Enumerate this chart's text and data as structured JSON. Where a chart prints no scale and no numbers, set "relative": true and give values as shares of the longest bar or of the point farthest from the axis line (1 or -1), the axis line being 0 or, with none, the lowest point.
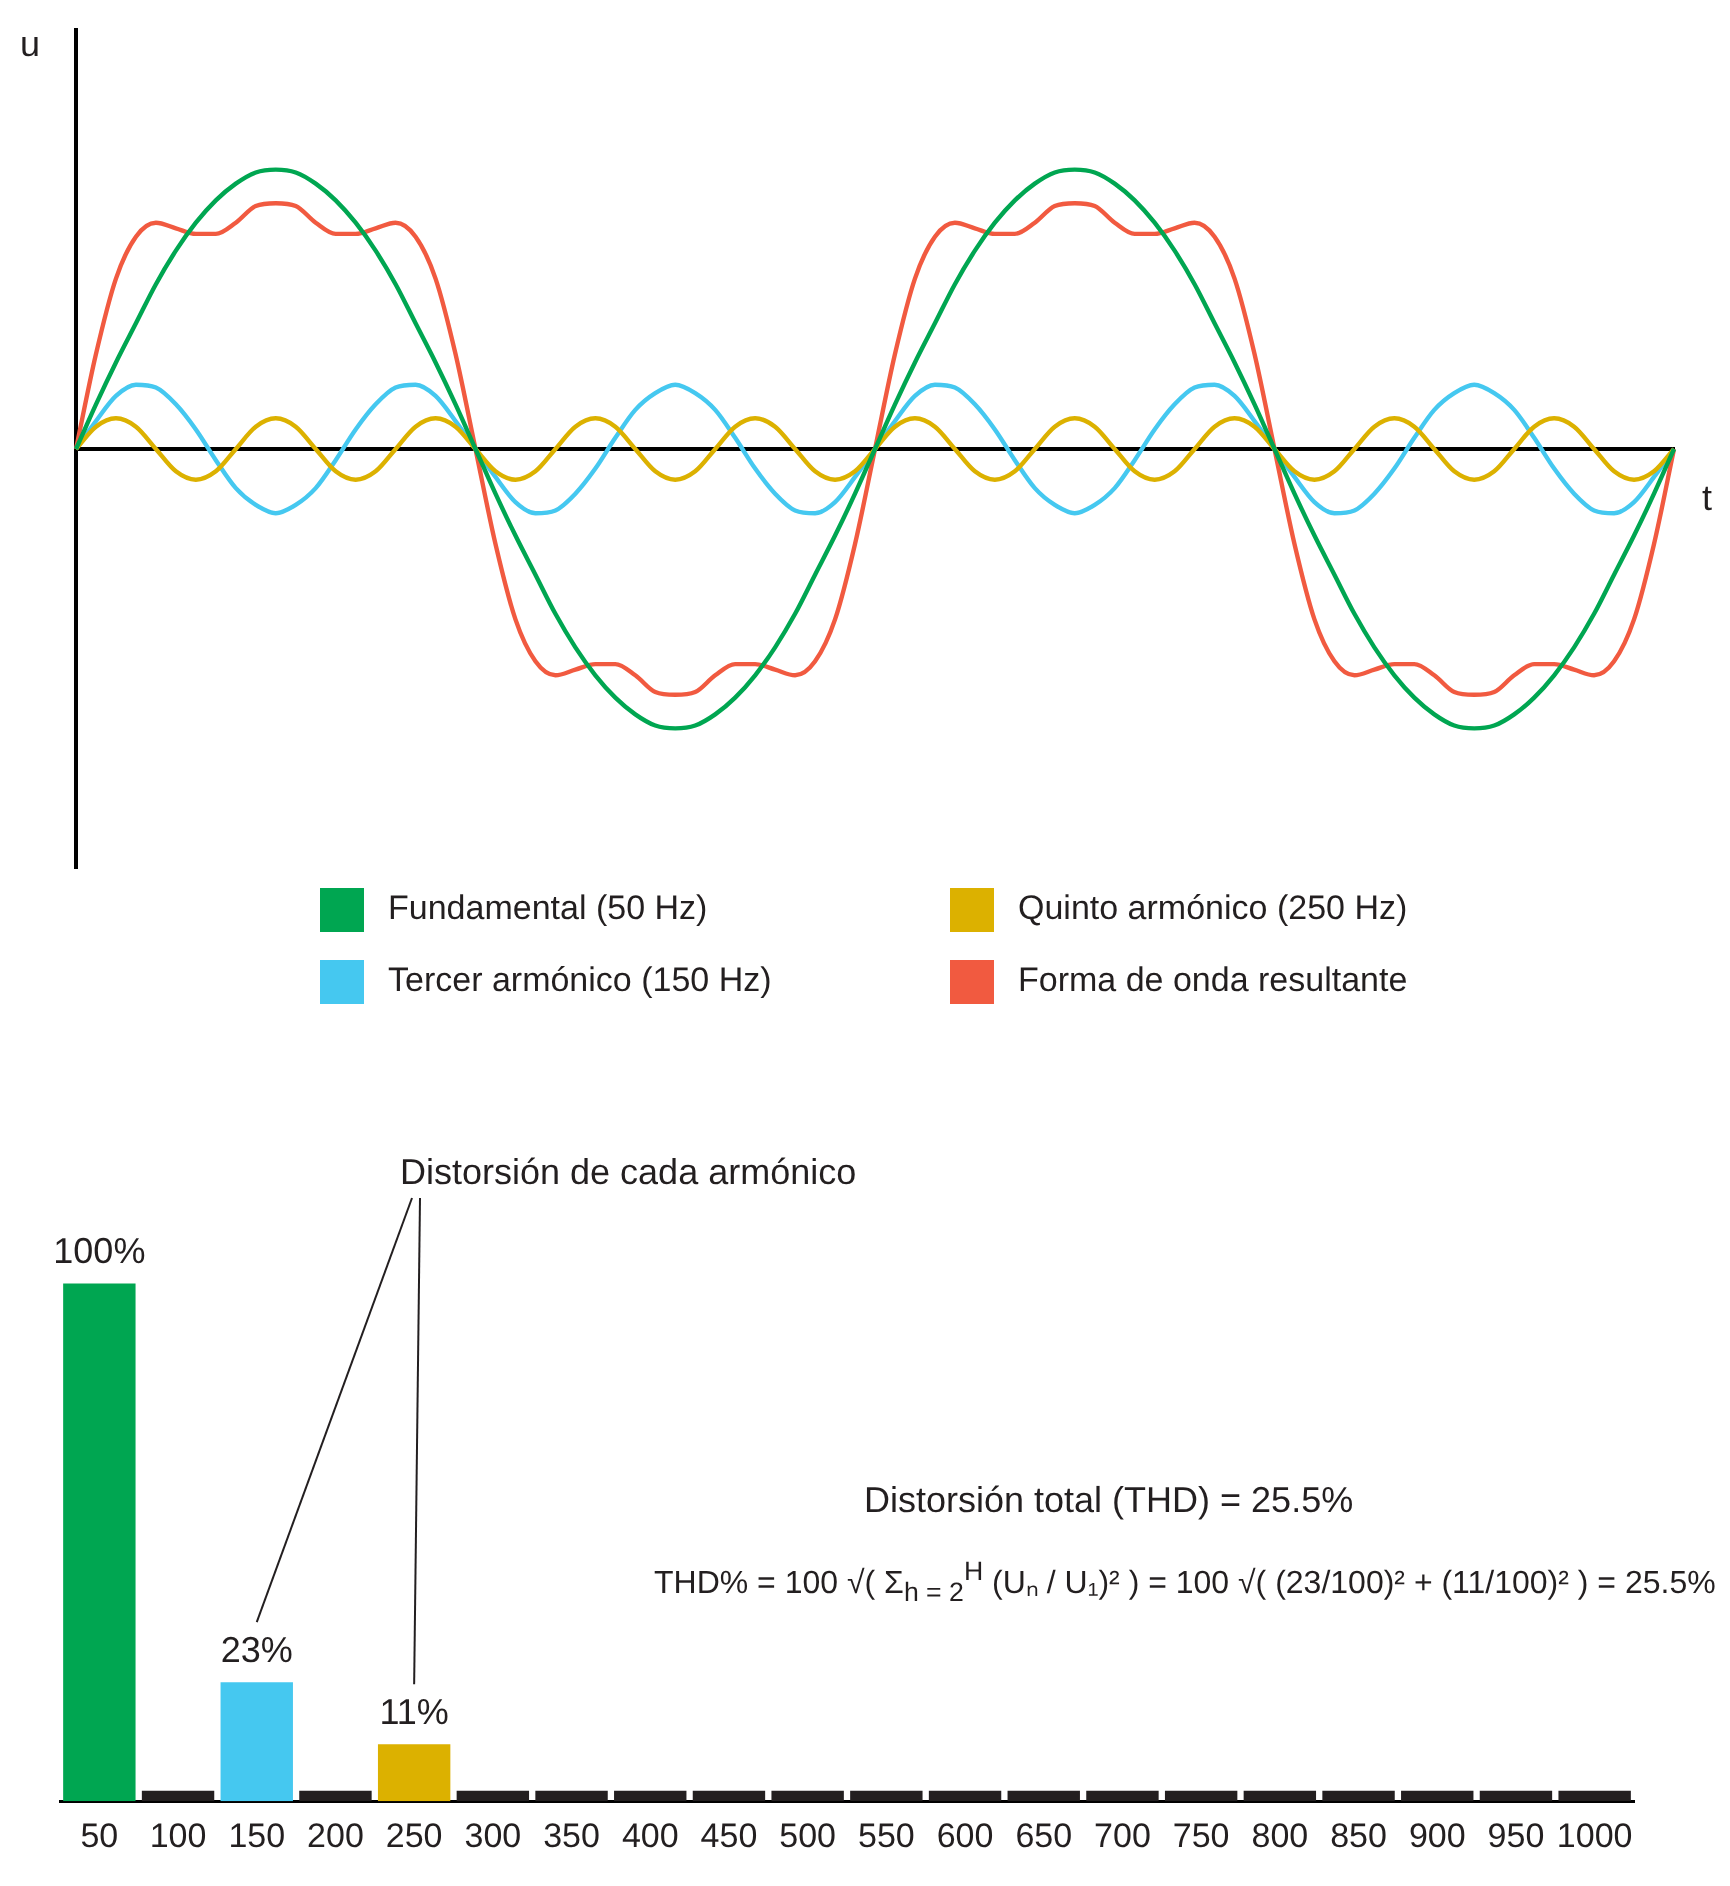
{
  "chart_data": [
    {
      "type": "line",
      "relative": true,
      "ylabel": "u",
      "xlabel": "t",
      "tick_labels": false,
      "legend": "bottom",
      "categories": [
        null,
        null,
        null,
        null,
        null,
        null,
        null,
        null,
        null,
        null,
        null,
        null,
        null,
        null,
        null,
        null,
        null,
        null,
        null,
        null,
        null,
        null,
        null,
        null,
        null,
        null,
        null,
        null,
        null,
        null,
        null,
        null,
        null,
        null,
        null,
        null,
        null,
        null,
        null,
        null,
        null,
        null,
        null,
        null,
        null,
        null,
        null,
        null,
        null,
        null,
        null,
        null,
        null,
        null,
        null,
        null,
        null,
        null,
        null,
        null,
        null,
        null,
        null,
        null,
        null,
        null,
        null,
        null,
        null,
        null,
        null,
        null,
        null,
        null,
        null,
        null,
        null,
        null,
        null,
        null,
        null
      ],
      "series": [
        {
          "name": "Fundamental (50 Hz)",
          "color": "#00a651",
          "values": [
            0,
            0.16,
            0.31,
            0.45,
            0.59,
            0.71,
            0.81,
            0.89,
            0.95,
            0.99,
            1,
            0.99,
            0.95,
            0.89,
            0.81,
            0.71,
            0.59,
            0.45,
            0.31,
            0.16,
            0,
            -0.16,
            -0.31,
            -0.45,
            -0.59,
            -0.71,
            -0.81,
            -0.89,
            -0.95,
            -0.99,
            -1,
            -0.99,
            -0.95,
            -0.89,
            -0.81,
            -0.71,
            -0.59,
            -0.45,
            -0.31,
            -0.16,
            0,
            0.16,
            0.31,
            0.45,
            0.59,
            0.71,
            0.81,
            0.89,
            0.95,
            0.99,
            1,
            0.99,
            0.95,
            0.89,
            0.81,
            0.71,
            0.59,
            0.45,
            0.31,
            0.16,
            0,
            -0.16,
            -0.31,
            -0.45,
            -0.59,
            -0.71,
            -0.81,
            -0.89,
            -0.95,
            -0.99,
            -1,
            -0.99,
            -0.95,
            -0.89,
            -0.81,
            -0.71,
            -0.59,
            -0.45,
            -0.31,
            -0.16,
            0
          ]
        },
        {
          "name": "Quinto armónico (250 Hz)",
          "color": "#dcb100",
          "values": [
            0,
            0.08,
            0.11,
            0.08,
            0,
            -0.08,
            -0.11,
            -0.08,
            0,
            0.08,
            0.11,
            0.08,
            0,
            -0.08,
            -0.11,
            -0.08,
            0,
            0.08,
            0.11,
            0.08,
            0,
            -0.08,
            -0.11,
            -0.08,
            0,
            0.08,
            0.11,
            0.08,
            0,
            -0.08,
            -0.11,
            -0.08,
            0,
            0.08,
            0.11,
            0.08,
            0,
            -0.08,
            -0.11,
            -0.08,
            0,
            0.08,
            0.11,
            0.08,
            0,
            -0.08,
            -0.11,
            -0.08,
            0,
            0.08,
            0.11,
            0.08,
            0,
            -0.08,
            -0.11,
            -0.08,
            0,
            0.08,
            0.11,
            0.08,
            0,
            -0.08,
            -0.11,
            -0.08,
            0,
            0.08,
            0.11,
            0.08,
            0,
            -0.08,
            -0.11,
            -0.08,
            0,
            0.08,
            0.11,
            0.08,
            0,
            -0.08,
            -0.11,
            -0.08,
            0
          ]
        },
        {
          "name": "Tercer armónico (150 Hz)",
          "color": "#45c8f0",
          "values": [
            0,
            0.1,
            0.19,
            0.23,
            0.22,
            0.16,
            0.07,
            -0.04,
            -0.14,
            -0.2,
            -0.23,
            -0.2,
            -0.14,
            -0.04,
            0.07,
            0.16,
            0.22,
            0.23,
            0.19,
            0.1,
            0,
            -0.1,
            -0.19,
            -0.23,
            -0.22,
            -0.16,
            -0.07,
            0.04,
            0.14,
            0.2,
            0.23,
            0.2,
            0.14,
            0.04,
            -0.07,
            -0.16,
            -0.22,
            -0.23,
            -0.19,
            -0.1,
            0,
            0.1,
            0.19,
            0.23,
            0.22,
            0.16,
            0.07,
            -0.04,
            -0.14,
            -0.2,
            -0.23,
            -0.2,
            -0.14,
            -0.04,
            0.07,
            0.16,
            0.22,
            0.23,
            0.19,
            0.1,
            0,
            -0.1,
            -0.19,
            -0.23,
            -0.22,
            -0.16,
            -0.07,
            0.04,
            0.14,
            0.2,
            0.23,
            0.2,
            0.14,
            0.04,
            -0.07,
            -0.16,
            -0.22,
            -0.23,
            -0.19,
            -0.1,
            0
          ]
        },
        {
          "name": "Forma de onda resultante",
          "color": "#f15a40",
          "values": [
            0,
            0.34,
            0.61,
            0.76,
            0.81,
            0.79,
            0.77,
            0.77,
            0.81,
            0.87,
            0.88,
            0.87,
            0.81,
            0.77,
            0.77,
            0.79,
            0.81,
            0.76,
            0.61,
            0.34,
            0,
            -0.34,
            -0.61,
            -0.76,
            -0.81,
            -0.79,
            -0.77,
            -0.77,
            -0.81,
            -0.87,
            -0.88,
            -0.87,
            -0.81,
            -0.77,
            -0.77,
            -0.79,
            -0.81,
            -0.76,
            -0.61,
            -0.34,
            0,
            0.34,
            0.61,
            0.76,
            0.81,
            0.79,
            0.77,
            0.77,
            0.81,
            0.87,
            0.88,
            0.87,
            0.81,
            0.77,
            0.77,
            0.79,
            0.81,
            0.76,
            0.61,
            0.34,
            0,
            -0.34,
            -0.61,
            -0.76,
            -0.81,
            -0.79,
            -0.77,
            -0.77,
            -0.81,
            -0.87,
            -0.88,
            -0.87,
            -0.81,
            -0.77,
            -0.77,
            -0.79,
            -0.81,
            -0.76,
            -0.61,
            -0.34,
            0
          ]
        }
      ]
    },
    {
      "type": "bar",
      "tick_labels": "x",
      "categories": [
        "50",
        "100",
        "150",
        "200",
        "250",
        "300",
        "350",
        "400",
        "450",
        "500",
        "550",
        "600",
        "650",
        "700",
        "750",
        "800",
        "850",
        "900",
        "950",
        "1000"
      ],
      "values": [
        100,
        2,
        23,
        2,
        11,
        2,
        2,
        2,
        2,
        2,
        2,
        2,
        2,
        2,
        2,
        2,
        2,
        2,
        2,
        2
      ],
      "colors": [
        "#00a651",
        "#231f20",
        "#45c8f0",
        "#231f20",
        "#dcb100",
        "#231f20",
        "#231f20",
        "#231f20",
        "#231f20",
        "#231f20",
        "#231f20",
        "#231f20",
        "#231f20",
        "#231f20",
        "#231f20",
        "#231f20",
        "#231f20",
        "#231f20",
        "#231f20",
        "#231f20"
      ],
      "value_labels": [
        "100%",
        null,
        "23%",
        null,
        "11%",
        null,
        null,
        null,
        null,
        null,
        null,
        null,
        null,
        null,
        null,
        null,
        null,
        null,
        null,
        null
      ],
      "annotations": [
        "Distorsión de cada armónico",
        "Distorsión total (THD) = 25.5%",
        "THD% = 100 √( Σ$_{h = 2}$$^{H}$ (Uₙ / U₁)² ) = 100 √( (23/100)² + (11/100)² ) = 25.5%"
      ]
    }
  ]
}
